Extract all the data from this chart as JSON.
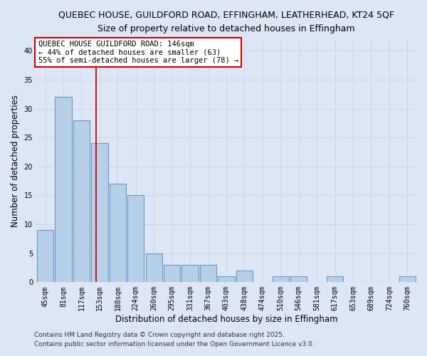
{
  "title_line1": "QUEBEC HOUSE, GUILDFORD ROAD, EFFINGHAM, LEATHERHEAD, KT24 5QF",
  "title_line2": "Size of property relative to detached houses in Effingham",
  "xlabel": "Distribution of detached houses by size in Effingham",
  "ylabel": "Number of detached properties",
  "bin_labels": [
    "45sqm",
    "81sqm",
    "117sqm",
    "153sqm",
    "188sqm",
    "224sqm",
    "260sqm",
    "295sqm",
    "331sqm",
    "367sqm",
    "403sqm",
    "438sqm",
    "474sqm",
    "510sqm",
    "546sqm",
    "581sqm",
    "617sqm",
    "653sqm",
    "689sqm",
    "724sqm",
    "760sqm"
  ],
  "bar_values": [
    9,
    32,
    28,
    24,
    17,
    15,
    5,
    3,
    3,
    3,
    1,
    2,
    0,
    1,
    1,
    0,
    1,
    0,
    0,
    0,
    1
  ],
  "bar_color": "#b8cfe8",
  "bar_edge_color": "#6699cc",
  "bar_edge_width": 0.8,
  "annotation_text": "QUEBEC HOUSE GUILDFORD ROAD: 146sqm\n← 44% of detached houses are smaller (63)\n55% of semi-detached houses are larger (78) →",
  "annotation_box_facecolor": "white",
  "annotation_box_edgecolor": "#cc0000",
  "ylim": [
    0,
    42
  ],
  "yticks": [
    0,
    5,
    10,
    15,
    20,
    25,
    30,
    35,
    40
  ],
  "grid_color": "#c8d4e8",
  "background_color": "#dce6f5",
  "footer_line1": "Contains HM Land Registry data © Crown copyright and database right 2025.",
  "footer_line2": "Contains public sector information licensed under the Open Government Licence v3.0.",
  "title_fontsize": 9.0,
  "subtitle_fontsize": 9.0,
  "axis_label_fontsize": 8.5,
  "tick_fontsize": 7.0,
  "annotation_fontsize": 7.5,
  "footer_fontsize": 6.5,
  "red_line_color": "#cc0000"
}
